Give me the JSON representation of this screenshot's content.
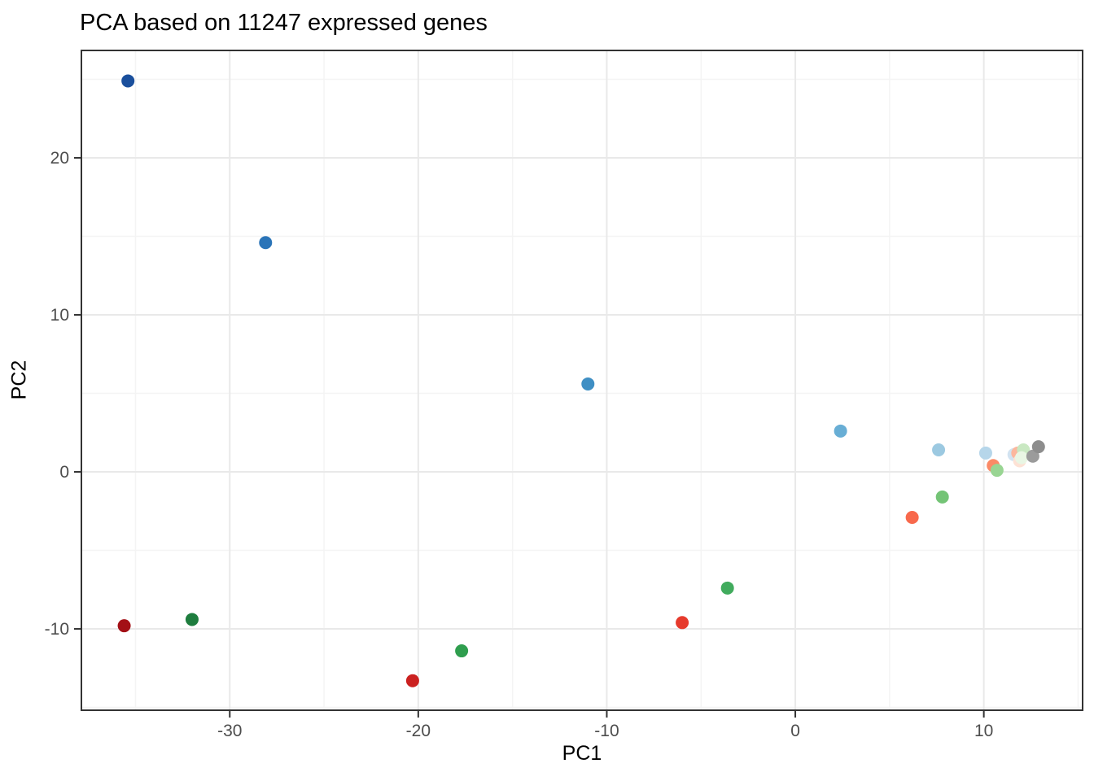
{
  "chart_data": {
    "type": "scatter",
    "title": "PCA based on 11247 expressed genes",
    "xlabel": "PC1",
    "ylabel": "PC2",
    "xlim": [
      -37.87,
      15.24
    ],
    "ylim": [
      -15.18,
      26.84
    ],
    "x_ticks": [
      -30,
      -20,
      -10,
      0,
      10
    ],
    "y_ticks": [
      -10,
      0,
      10,
      20
    ],
    "x_minor_ticks": [
      -35,
      -25,
      -15,
      -5,
      5,
      15
    ],
    "y_minor_ticks": [
      -15,
      -5,
      5,
      15,
      25
    ],
    "grid": true,
    "legend_position": "none",
    "panel_border_color": "#333333",
    "major_grid_color": "#e9e9e9",
    "minor_grid_color": "#f4f4f4",
    "tick_color": "#333333",
    "tick_label_color": "#4d4d4d",
    "series": [
      {
        "name": "blue-gradient-samples",
        "points": [
          {
            "x": -35.4,
            "y": 24.9,
            "color": "#1a4f9c"
          },
          {
            "x": -28.1,
            "y": 14.6,
            "color": "#2a74b8"
          },
          {
            "x": -11.0,
            "y": 5.6,
            "color": "#3f8fc4"
          },
          {
            "x": 2.4,
            "y": 2.6,
            "color": "#68aed5"
          },
          {
            "x": 7.6,
            "y": 1.4,
            "color": "#9cc9e1"
          },
          {
            "x": 10.1,
            "y": 1.2,
            "color": "#b6d6ea"
          },
          {
            "x": 11.6,
            "y": 1.1,
            "color": "#d2e3f1"
          }
        ]
      },
      {
        "name": "red-gradient-samples",
        "points": [
          {
            "x": -35.6,
            "y": -9.8,
            "color": "#a31016"
          },
          {
            "x": -20.3,
            "y": -13.3,
            "color": "#cb2120"
          },
          {
            "x": -6.0,
            "y": -9.6,
            "color": "#e63a2c"
          },
          {
            "x": 6.2,
            "y": -2.9,
            "color": "#f8694c"
          },
          {
            "x": 10.5,
            "y": 0.4,
            "color": "#fb8a66"
          },
          {
            "x": 11.8,
            "y": 1.2,
            "color": "#fcb79d"
          },
          {
            "x": 11.9,
            "y": 0.7,
            "color": "#fde2d5"
          }
        ]
      },
      {
        "name": "green-gradient-samples",
        "points": [
          {
            "x": -32.0,
            "y": -9.4,
            "color": "#1e7d3e"
          },
          {
            "x": -17.7,
            "y": -11.4,
            "color": "#2f9e4e"
          },
          {
            "x": -3.6,
            "y": -7.4,
            "color": "#41ab5d"
          },
          {
            "x": 7.8,
            "y": -1.6,
            "color": "#74c476"
          },
          {
            "x": 10.7,
            "y": 0.1,
            "color": "#99d593"
          },
          {
            "x": 12.1,
            "y": 1.4,
            "color": "#c9e8c2"
          },
          {
            "x": 12.0,
            "y": 0.9,
            "color": "#e9f6e4"
          }
        ]
      },
      {
        "name": "gray-samples",
        "points": [
          {
            "x": 12.6,
            "y": 1.0,
            "color": "#9b9b9b"
          },
          {
            "x": 12.9,
            "y": 1.6,
            "color": "#8d8d8d"
          }
        ]
      }
    ]
  }
}
